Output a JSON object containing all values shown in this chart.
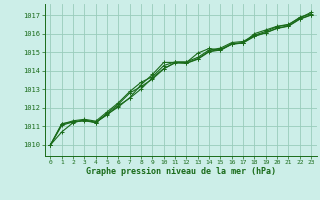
{
  "title": "Graphe pression niveau de la mer (hPa)",
  "bg_color": "#cceee8",
  "grid_color": "#99ccbb",
  "line_color": "#1a6b1a",
  "xlim": [
    -0.5,
    23.5
  ],
  "ylim": [
    1009.4,
    1017.6
  ],
  "xticks": [
    0,
    1,
    2,
    3,
    4,
    5,
    6,
    7,
    8,
    9,
    10,
    11,
    12,
    13,
    14,
    15,
    16,
    17,
    18,
    19,
    20,
    21,
    22,
    23
  ],
  "yticks": [
    1010,
    1011,
    1012,
    1013,
    1014,
    1015,
    1016,
    1017
  ],
  "series": [
    [
      1010.0,
      1010.7,
      1011.2,
      1011.35,
      1011.2,
      1011.65,
      1012.05,
      1012.55,
      1013.25,
      1013.8,
      1014.45,
      1014.45,
      1014.45,
      1014.95,
      1015.2,
      1015.1,
      1015.45,
      1015.5,
      1016.0,
      1016.2,
      1016.4,
      1016.5,
      1016.85,
      1017.15
    ],
    [
      1010.0,
      1011.05,
      1011.25,
      1011.3,
      1011.2,
      1011.7,
      1012.2,
      1012.8,
      1013.15,
      1013.55,
      1014.1,
      1014.45,
      1014.42,
      1014.65,
      1015.05,
      1015.15,
      1015.45,
      1015.52,
      1015.88,
      1016.05,
      1016.3,
      1016.42,
      1016.8,
      1017.02
    ],
    [
      1010.0,
      1011.12,
      1011.3,
      1011.38,
      1011.28,
      1011.78,
      1012.28,
      1012.88,
      1013.38,
      1013.68,
      1014.28,
      1014.48,
      1014.48,
      1014.72,
      1015.12,
      1015.22,
      1015.52,
      1015.58,
      1015.92,
      1016.12,
      1016.38,
      1016.48,
      1016.88,
      1017.08
    ],
    [
      1010.0,
      1011.15,
      1011.22,
      1011.32,
      1011.22,
      1011.62,
      1012.12,
      1012.52,
      1013.02,
      1013.62,
      1014.12,
      1014.42,
      1014.4,
      1014.62,
      1015.02,
      1015.12,
      1015.42,
      1015.5,
      1015.85,
      1016.05,
      1016.28,
      1016.4,
      1016.78,
      1017.0
    ]
  ]
}
